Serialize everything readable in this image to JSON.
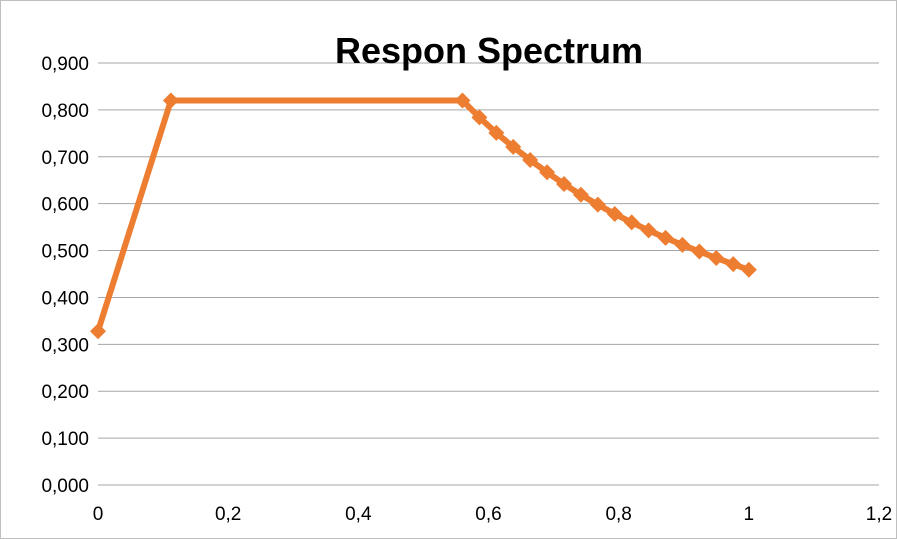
{
  "chart_data": {
    "type": "line",
    "title": "Respon Spectrum",
    "xlabel": "",
    "ylabel": "",
    "xlim": [
      0,
      1.2
    ],
    "ylim": [
      0,
      0.9
    ],
    "x_ticks": [
      0,
      0.2,
      0.4,
      0.6,
      0.8,
      1,
      1.2
    ],
    "x_tick_labels": [
      "0",
      "0,2",
      "0,4",
      "0,6",
      "0,8",
      "1",
      "1,2"
    ],
    "y_ticks": [
      0,
      0.1,
      0.2,
      0.3,
      0.4,
      0.5,
      0.6,
      0.7,
      0.8,
      0.9
    ],
    "y_tick_labels": [
      "0,000",
      "0,100",
      "0,200",
      "0,300",
      "0,400",
      "0,500",
      "0,600",
      "0,700",
      "0,800",
      "0,900"
    ],
    "grid": "horizontal",
    "legend": "none",
    "series": [
      {
        "color": "#ED7D31",
        "marker": "diamond",
        "points": [
          [
            0,
            0.328
          ],
          [
            0.112,
            0.82
          ],
          [
            0.56,
            0.82
          ],
          [
            0.586,
            0.784
          ],
          [
            0.612,
            0.751
          ],
          [
            0.638,
            0.721
          ],
          [
            0.664,
            0.693
          ],
          [
            0.69,
            0.667
          ],
          [
            0.716,
            0.642
          ],
          [
            0.742,
            0.619
          ],
          [
            0.768,
            0.598
          ],
          [
            0.794,
            0.578
          ],
          [
            0.82,
            0.56
          ],
          [
            0.846,
            0.543
          ],
          [
            0.872,
            0.527
          ],
          [
            0.898,
            0.512
          ],
          [
            0.924,
            0.498
          ],
          [
            0.95,
            0.484
          ],
          [
            0.976,
            0.471
          ],
          [
            1.0,
            0.459
          ]
        ]
      }
    ]
  }
}
